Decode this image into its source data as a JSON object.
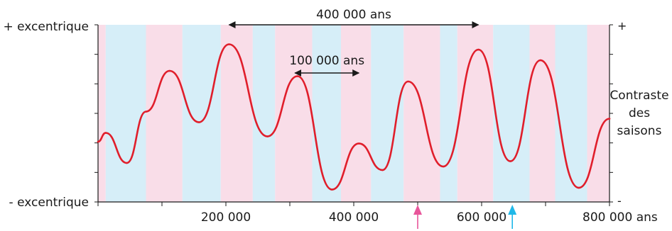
{
  "chart_data": {
    "type": "line",
    "title": "",
    "xlabel": "",
    "ylabel": "",
    "x_unit": "ans",
    "xlim": [
      0,
      800000
    ],
    "x_ticks": [
      200000,
      400000,
      600000,
      800000
    ],
    "x_tick_labels": [
      "200 000",
      "400 000",
      "600 000",
      "800 000 ans"
    ],
    "y_left_top": "+ excentrique",
    "y_left_bottom": "- excentrique",
    "y_right_top": "+",
    "y_right_bottom": "-",
    "y_right_title": [
      "Contraste",
      "des",
      "saisons"
    ],
    "grid": false,
    "band_colors": {
      "pink": "#f9dde8",
      "blue": "#d6eef8"
    },
    "bands": [
      {
        "x0": 0,
        "x1": 12000,
        "color": "pink"
      },
      {
        "x0": 12000,
        "x1": 75000,
        "color": "blue"
      },
      {
        "x0": 75000,
        "x1": 132000,
        "color": "pink"
      },
      {
        "x0": 132000,
        "x1": 192000,
        "color": "blue"
      },
      {
        "x0": 192000,
        "x1": 242000,
        "color": "pink"
      },
      {
        "x0": 242000,
        "x1": 277000,
        "color": "blue"
      },
      {
        "x0": 277000,
        "x1": 335000,
        "color": "pink"
      },
      {
        "x0": 335000,
        "x1": 380000,
        "color": "blue"
      },
      {
        "x0": 380000,
        "x1": 427000,
        "color": "pink"
      },
      {
        "x0": 427000,
        "x1": 478000,
        "color": "blue"
      },
      {
        "x0": 478000,
        "x1": 535000,
        "color": "pink"
      },
      {
        "x0": 535000,
        "x1": 562000,
        "color": "blue"
      },
      {
        "x0": 562000,
        "x1": 618000,
        "color": "pink"
      },
      {
        "x0": 618000,
        "x1": 675000,
        "color": "blue"
      },
      {
        "x0": 675000,
        "x1": 715000,
        "color": "pink"
      },
      {
        "x0": 715000,
        "x1": 765000,
        "color": "blue"
      },
      {
        "x0": 765000,
        "x1": 800000,
        "color": "pink"
      }
    ],
    "series": [
      {
        "color": "#e01e2b",
        "points": [
          [
            0,
            0.34
          ],
          [
            12000,
            0.39
          ],
          [
            45000,
            0.22
          ],
          [
            75000,
            0.51
          ],
          [
            112000,
            0.74
          ],
          [
            158000,
            0.45
          ],
          [
            205000,
            0.89
          ],
          [
            265000,
            0.37
          ],
          [
            312000,
            0.71
          ],
          [
            366000,
            0.07
          ],
          [
            408000,
            0.33
          ],
          [
            445000,
            0.18
          ],
          [
            485000,
            0.68
          ],
          [
            540000,
            0.2
          ],
          [
            595000,
            0.86
          ],
          [
            645000,
            0.23
          ],
          [
            692000,
            0.8
          ],
          [
            752000,
            0.08
          ],
          [
            800000,
            0.47
          ]
        ]
      }
    ],
    "annotations": [
      {
        "text": "400 000 ans",
        "from": 205000,
        "to": 595000,
        "level": "top"
      },
      {
        "text": "100 000 ans",
        "from": 308000,
        "to": 408000,
        "level": "middle"
      }
    ],
    "markers": [
      {
        "x": 500000,
        "color": "#e8559a"
      },
      {
        "x": 648000,
        "color": "#1fb8e8"
      }
    ]
  }
}
